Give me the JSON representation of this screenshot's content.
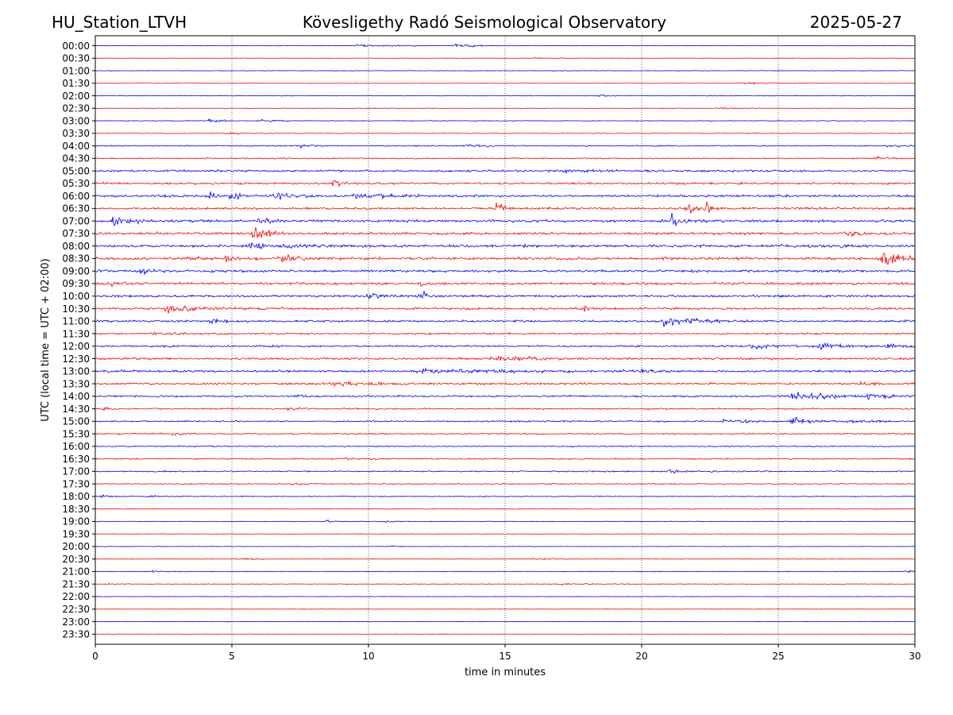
{
  "header": {
    "station": "HU_Station_LTVH",
    "observatory": "Kövesligethy Radó Seismological Observatory",
    "date": "2025-05-27"
  },
  "chart_data": {
    "type": "line",
    "title": "Kövesligethy Radó Seismological Observatory",
    "xlabel": "time in minutes",
    "ylabel": "UTC (local time = UTC + 02:00)",
    "xlim": [
      0,
      30
    ],
    "x_ticks": [
      0,
      5,
      10,
      15,
      20,
      25,
      30
    ],
    "x_tick_labels": [
      "0",
      "5",
      "10",
      "15",
      "20",
      "25",
      "30"
    ],
    "vertical_grid": true,
    "colors": [
      "#0000ff",
      "#ff0000"
    ],
    "traces": [
      {
        "label": "00:00",
        "noise": 0.3,
        "events": [
          {
            "t": 9.5,
            "amp": 1.5,
            "dur": 3.0
          },
          {
            "t": 13.2,
            "amp": 2.0,
            "dur": 1.5
          }
        ]
      },
      {
        "label": "00:30",
        "noise": 0.2,
        "events": [
          {
            "t": 16.0,
            "amp": 1.0,
            "dur": 1.5
          }
        ]
      },
      {
        "label": "01:00",
        "noise": 0.25,
        "events": []
      },
      {
        "label": "01:30",
        "noise": 0.25,
        "events": [
          {
            "t": 23.8,
            "amp": 1.2,
            "dur": 1.5
          }
        ]
      },
      {
        "label": "02:00",
        "noise": 0.3,
        "events": [
          {
            "t": 18.5,
            "amp": 1.5,
            "dur": 0.8
          }
        ]
      },
      {
        "label": "02:30",
        "noise": 0.3,
        "events": [
          {
            "t": 22.8,
            "amp": 1.3,
            "dur": 1.0
          }
        ]
      },
      {
        "label": "03:00",
        "noise": 0.4,
        "events": [
          {
            "t": 4.2,
            "amp": 2.8,
            "dur": 0.8
          },
          {
            "t": 6.0,
            "amp": 1.0,
            "dur": 2.0
          }
        ]
      },
      {
        "label": "03:30",
        "noise": 0.4,
        "events": [
          {
            "t": 4.8,
            "amp": 1.2,
            "dur": 1.0
          }
        ]
      },
      {
        "label": "04:00",
        "noise": 0.6,
        "events": [
          {
            "t": 7.5,
            "amp": 2.0,
            "dur": 1.0
          },
          {
            "t": 13.5,
            "amp": 2.0,
            "dur": 1.5
          },
          {
            "t": 29.0,
            "amp": 1.5,
            "dur": 1.0
          }
        ]
      },
      {
        "label": "04:30",
        "noise": 0.6,
        "events": [
          {
            "t": 28.5,
            "amp": 2.0,
            "dur": 1.2
          }
        ]
      },
      {
        "label": "05:00",
        "noise": 1.1,
        "events": [
          {
            "t": 17.0,
            "amp": 1.5,
            "dur": 2.0
          }
        ]
      },
      {
        "label": "05:30",
        "noise": 1.1,
        "events": [
          {
            "t": 8.7,
            "amp": 7.0,
            "dur": 0.4
          }
        ]
      },
      {
        "label": "06:00",
        "noise": 1.2,
        "events": [
          {
            "t": 4.2,
            "amp": 5.0,
            "dur": 0.3
          },
          {
            "t": 5.0,
            "amp": 11.0,
            "dur": 0.4
          },
          {
            "t": 6.5,
            "amp": 3.0,
            "dur": 1.5
          },
          {
            "t": 9.5,
            "amp": 3.5,
            "dur": 2.0
          }
        ]
      },
      {
        "label": "06:30",
        "noise": 1.2,
        "events": [
          {
            "t": 14.7,
            "amp": 6.0,
            "dur": 0.5
          },
          {
            "t": 21.7,
            "amp": 10.0,
            "dur": 0.4
          },
          {
            "t": 22.4,
            "amp": 7.0,
            "dur": 0.4
          }
        ]
      },
      {
        "label": "07:00",
        "noise": 1.3,
        "events": [
          {
            "t": 0.6,
            "amp": 5.0,
            "dur": 1.5
          },
          {
            "t": 6.0,
            "amp": 3.5,
            "dur": 1.0
          },
          {
            "t": 21.1,
            "amp": 9.0,
            "dur": 0.6
          }
        ]
      },
      {
        "label": "07:30",
        "noise": 1.3,
        "events": [
          {
            "t": 5.8,
            "amp": 8.0,
            "dur": 0.9
          },
          {
            "t": 27.5,
            "amp": 2.0,
            "dur": 2.0
          }
        ]
      },
      {
        "label": "08:00",
        "noise": 1.4,
        "events": [
          {
            "t": 5.5,
            "amp": 3.0,
            "dur": 3.0
          },
          {
            "t": 27.0,
            "amp": 2.0,
            "dur": 1.0
          }
        ]
      },
      {
        "label": "08:30",
        "noise": 1.4,
        "events": [
          {
            "t": 3.2,
            "amp": 3.0,
            "dur": 1.0
          },
          {
            "t": 4.8,
            "amp": 4.0,
            "dur": 0.6
          },
          {
            "t": 6.8,
            "amp": 3.0,
            "dur": 2.0
          },
          {
            "t": 28.8,
            "amp": 14.0,
            "dur": 0.9
          }
        ]
      },
      {
        "label": "09:00",
        "noise": 1.3,
        "events": [
          {
            "t": 1.7,
            "amp": 3.0,
            "dur": 1.0
          }
        ]
      },
      {
        "label": "09:30",
        "noise": 1.3,
        "events": [
          {
            "t": 0.5,
            "amp": 3.0,
            "dur": 1.0
          },
          {
            "t": 11.9,
            "amp": 3.5,
            "dur": 0.3
          }
        ]
      },
      {
        "label": "10:00",
        "noise": 1.2,
        "events": [
          {
            "t": 10.0,
            "amp": 2.5,
            "dur": 1.5
          },
          {
            "t": 11.9,
            "amp": 7.0,
            "dur": 0.4
          }
        ]
      },
      {
        "label": "10:30",
        "noise": 1.2,
        "events": [
          {
            "t": 2.6,
            "amp": 5.5,
            "dur": 2.0
          },
          {
            "t": 17.9,
            "amp": 3.0,
            "dur": 0.6
          }
        ]
      },
      {
        "label": "11:00",
        "noise": 1.1,
        "events": [
          {
            "t": 4.2,
            "amp": 3.0,
            "dur": 1.0
          },
          {
            "t": 20.8,
            "amp": 6.0,
            "dur": 2.0
          }
        ]
      },
      {
        "label": "11:30",
        "noise": 0.9,
        "events": [
          {
            "t": 2.0,
            "amp": 1.5,
            "dur": 2.0
          }
        ]
      },
      {
        "label": "12:00",
        "noise": 1.0,
        "events": [
          {
            "t": 24.0,
            "amp": 2.5,
            "dur": 2.0
          },
          {
            "t": 26.5,
            "amp": 2.5,
            "dur": 2.0
          },
          {
            "t": 29.0,
            "amp": 2.5,
            "dur": 2.0
          }
        ]
      },
      {
        "label": "12:30",
        "noise": 1.1,
        "events": [
          {
            "t": 14.5,
            "amp": 3.0,
            "dur": 3.0
          }
        ]
      },
      {
        "label": "13:00",
        "noise": 1.2,
        "events": [
          {
            "t": 12.0,
            "amp": 2.5,
            "dur": 4.0
          },
          {
            "t": 20.0,
            "amp": 2.0,
            "dur": 1.0
          }
        ]
      },
      {
        "label": "13:30",
        "noise": 1.1,
        "events": [
          {
            "t": 8.7,
            "amp": 3.0,
            "dur": 1.5
          },
          {
            "t": 28.0,
            "amp": 2.0,
            "dur": 1.0
          }
        ]
      },
      {
        "label": "14:00",
        "noise": 1.0,
        "events": [
          {
            "t": 7.4,
            "amp": 2.5,
            "dur": 0.3
          },
          {
            "t": 25.5,
            "amp": 5.0,
            "dur": 2.5
          },
          {
            "t": 28.3,
            "amp": 4.0,
            "dur": 1.0
          }
        ]
      },
      {
        "label": "14:30",
        "noise": 0.8,
        "events": [
          {
            "t": 0.3,
            "amp": 4.0,
            "dur": 0.5
          },
          {
            "t": 7.0,
            "amp": 1.5,
            "dur": 0.8
          }
        ]
      },
      {
        "label": "15:00",
        "noise": 0.8,
        "events": [
          {
            "t": 23.0,
            "amp": 2.0,
            "dur": 2.0
          },
          {
            "t": 25.5,
            "amp": 3.5,
            "dur": 1.5
          },
          {
            "t": 27.5,
            "amp": 2.0,
            "dur": 1.5
          }
        ]
      },
      {
        "label": "15:30",
        "noise": 0.7,
        "events": [
          {
            "t": 2.8,
            "amp": 1.5,
            "dur": 1.0
          }
        ]
      },
      {
        "label": "16:00",
        "noise": 0.6,
        "events": []
      },
      {
        "label": "16:30",
        "noise": 0.7,
        "events": [
          {
            "t": 9.0,
            "amp": 1.0,
            "dur": 2.0
          }
        ]
      },
      {
        "label": "17:00",
        "noise": 0.7,
        "events": [
          {
            "t": 21.0,
            "amp": 1.2,
            "dur": 2.0
          }
        ]
      },
      {
        "label": "17:30",
        "noise": 0.6,
        "events": [
          {
            "t": 7.2,
            "amp": 1.2,
            "dur": 0.8
          }
        ]
      },
      {
        "label": "18:00",
        "noise": 0.5,
        "events": [
          {
            "t": 0.2,
            "amp": 1.5,
            "dur": 0.6
          },
          {
            "t": 2.0,
            "amp": 1.0,
            "dur": 1.0
          }
        ]
      },
      {
        "label": "18:30",
        "noise": 0.4,
        "events": []
      },
      {
        "label": "19:00",
        "noise": 0.3,
        "events": [
          {
            "t": 8.5,
            "amp": 3.5,
            "dur": 0.3
          },
          {
            "t": 10.5,
            "amp": 1.0,
            "dur": 1.0
          }
        ]
      },
      {
        "label": "19:30",
        "noise": 0.3,
        "events": []
      },
      {
        "label": "20:00",
        "noise": 0.25,
        "events": [
          {
            "t": 10.8,
            "amp": 1.0,
            "dur": 0.5
          }
        ]
      },
      {
        "label": "20:30",
        "noise": 0.3,
        "events": [
          {
            "t": 5.5,
            "amp": 1.2,
            "dur": 1.0
          },
          {
            "t": 16.0,
            "amp": 1.0,
            "dur": 2.0
          }
        ]
      },
      {
        "label": "21:00",
        "noise": 0.3,
        "events": [
          {
            "t": 2.0,
            "amp": 1.2,
            "dur": 1.0
          },
          {
            "t": 29.7,
            "amp": 2.0,
            "dur": 0.6
          }
        ]
      },
      {
        "label": "21:30",
        "noise": 0.3,
        "events": [
          {
            "t": 0.5,
            "amp": 1.2,
            "dur": 0.6
          },
          {
            "t": 17.0,
            "amp": 1.0,
            "dur": 1.5
          }
        ]
      },
      {
        "label": "22:00",
        "noise": 0.2,
        "events": []
      },
      {
        "label": "22:30",
        "noise": 0.2,
        "events": []
      },
      {
        "label": "23:00",
        "noise": 0.2,
        "events": []
      },
      {
        "label": "23:30",
        "noise": 0.25,
        "events": []
      }
    ]
  }
}
